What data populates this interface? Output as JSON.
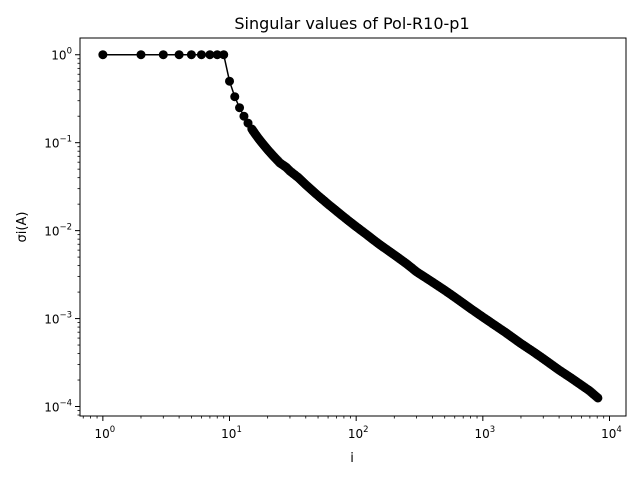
{
  "chart_data": {
    "type": "line",
    "title": "Singular values of Pol-R10-p1",
    "xlabel": "i",
    "ylabel": "σi(A)",
    "xscale": "log",
    "yscale": "log",
    "xlim": [
      0.66,
      13500
    ],
    "ylim": [
      7.8e-05,
      1.55
    ],
    "grid": false,
    "legend": "none",
    "line_color": "#000000",
    "marker": "circle",
    "x_ticks": [
      {
        "base": "10",
        "exp": "0",
        "value": 1
      },
      {
        "base": "10",
        "exp": "1",
        "value": 10
      },
      {
        "base": "10",
        "exp": "2",
        "value": 100
      },
      {
        "base": "10",
        "exp": "3",
        "value": 1000
      },
      {
        "base": "10",
        "exp": "4",
        "value": 10000
      }
    ],
    "y_ticks": [
      {
        "base": "10",
        "exp": "0",
        "value": 1
      },
      {
        "base": "10",
        "exp": "−1",
        "value": 0.1
      },
      {
        "base": "10",
        "exp": "−2",
        "value": 0.01
      },
      {
        "base": "10",
        "exp": "−3",
        "value": 0.001
      },
      {
        "base": "10",
        "exp": "−4",
        "value": 0.0001
      }
    ],
    "series": [
      {
        "values": [
          {
            "x": 1,
            "y": 1.0
          },
          {
            "x": 2,
            "y": 1.0
          },
          {
            "x": 3,
            "y": 1.0
          },
          {
            "x": 4,
            "y": 1.0
          },
          {
            "x": 5,
            "y": 1.0
          },
          {
            "x": 6,
            "y": 1.0
          },
          {
            "x": 7,
            "y": 1.0
          },
          {
            "x": 8,
            "y": 1.0
          },
          {
            "x": 9,
            "y": 1.0
          },
          {
            "x": 10,
            "y": 0.5
          },
          {
            "x": 11,
            "y": 0.333
          },
          {
            "x": 12,
            "y": 0.25
          },
          {
            "x": 13,
            "y": 0.2
          },
          {
            "x": 14,
            "y": 0.167
          },
          {
            "x": 15,
            "y": 0.143
          },
          {
            "x": 16,
            "y": 0.125
          },
          {
            "x": 17,
            "y": 0.111
          },
          {
            "x": 18,
            "y": 0.1
          },
          {
            "x": 20,
            "y": 0.0833
          },
          {
            "x": 22,
            "y": 0.0714
          },
          {
            "x": 25,
            "y": 0.0588
          },
          {
            "x": 28,
            "y": 0.0526
          },
          {
            "x": 30,
            "y": 0.0476
          },
          {
            "x": 35,
            "y": 0.04
          },
          {
            "x": 40,
            "y": 0.0333
          },
          {
            "x": 50,
            "y": 0.025
          },
          {
            "x": 60,
            "y": 0.02
          },
          {
            "x": 70,
            "y": 0.0167
          },
          {
            "x": 85,
            "y": 0.0133
          },
          {
            "x": 100,
            "y": 0.0111
          },
          {
            "x": 120,
            "y": 0.0091
          },
          {
            "x": 150,
            "y": 0.0071
          },
          {
            "x": 200,
            "y": 0.0053
          },
          {
            "x": 250,
            "y": 0.0042
          },
          {
            "x": 300,
            "y": 0.0034
          },
          {
            "x": 400,
            "y": 0.0026
          },
          {
            "x": 500,
            "y": 0.0021
          },
          {
            "x": 600,
            "y": 0.00175
          },
          {
            "x": 800,
            "y": 0.0013
          },
          {
            "x": 1000,
            "y": 0.00104
          },
          {
            "x": 1200,
            "y": 0.00087
          },
          {
            "x": 1500,
            "y": 0.0007
          },
          {
            "x": 2000,
            "y": 0.00052
          },
          {
            "x": 2500,
            "y": 0.00042
          },
          {
            "x": 3000,
            "y": 0.00035
          },
          {
            "x": 4000,
            "y": 0.00026
          },
          {
            "x": 5000,
            "y": 0.00021
          },
          {
            "x": 6000,
            "y": 0.000175
          },
          {
            "x": 7000,
            "y": 0.00015
          },
          {
            "x": 8100,
            "y": 0.000125
          }
        ]
      }
    ]
  }
}
